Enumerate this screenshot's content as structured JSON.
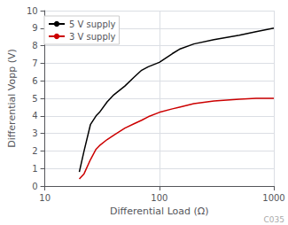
{
  "chart_data": {
    "type": "line",
    "xlabel": "Differential Load (Ω)",
    "ylabel": "Differential Vopp (V)",
    "log": "x",
    "xlim": [
      10,
      1000
    ],
    "xticks": [
      10,
      100,
      1000
    ],
    "ylim": [
      0,
      10
    ],
    "yticks": [
      0,
      1,
      2,
      3,
      4,
      5,
      6,
      7,
      8,
      9,
      10
    ],
    "grid": true,
    "legend": "upper left",
    "annotation": "C035",
    "x": [
      20,
      22,
      25,
      28,
      30,
      35,
      40,
      50,
      60,
      70,
      80,
      100,
      130,
      150,
      200,
      300,
      500,
      700,
      1000
    ],
    "series": [
      {
        "name": "5 V supply",
        "color": "#000000",
        "values": [
          0.8,
          2.0,
          3.5,
          4.0,
          4.2,
          4.8,
          5.2,
          5.7,
          6.2,
          6.6,
          6.8,
          7.05,
          7.55,
          7.8,
          8.1,
          8.35,
          8.6,
          8.8,
          9.0
        ]
      },
      {
        "name": "3 V supply",
        "color": "#cc0000",
        "values": [
          0.4,
          0.7,
          1.5,
          2.1,
          2.3,
          2.65,
          2.9,
          3.3,
          3.55,
          3.75,
          3.95,
          4.2,
          4.4,
          4.5,
          4.7,
          4.85,
          4.95,
          5.0,
          5.0
        ]
      }
    ]
  }
}
